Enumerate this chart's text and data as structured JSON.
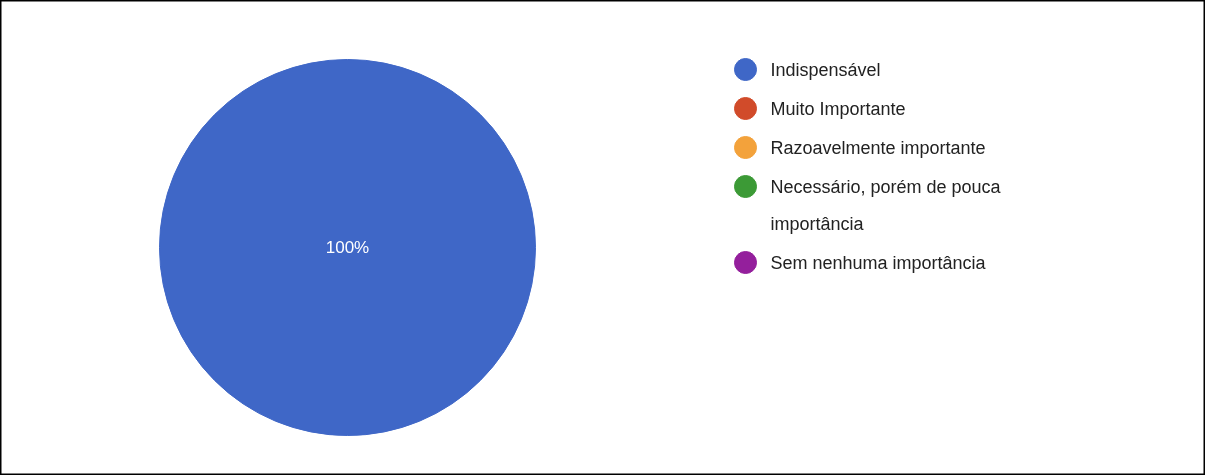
{
  "chart_data": {
    "type": "pie",
    "categories": [
      "Indispensável",
      "Muito Importante",
      "Razoavelmente importante",
      "Necessário, porém de pouca importância",
      "Sem nenhuma importância"
    ],
    "values": [
      100,
      0,
      0,
      0,
      0
    ],
    "colors": [
      "#3f67c7",
      "#d14b2a",
      "#f3a23b",
      "#3c9a36",
      "#941f9c"
    ],
    "value_labels": [
      "100%",
      null,
      null,
      null,
      null
    ],
    "legend": "top right"
  }
}
